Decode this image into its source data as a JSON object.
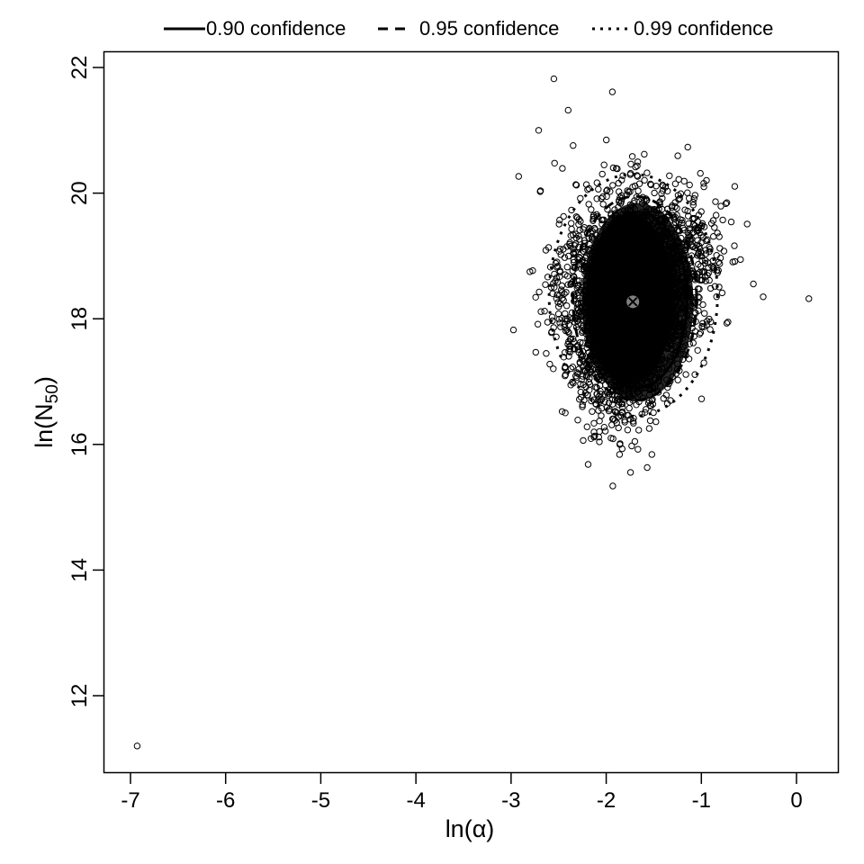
{
  "chart_data": {
    "type": "scatter",
    "title": "",
    "xlabel": "ln(α)",
    "ylabel": "ln(N50)",
    "ylabel_parts": {
      "prefix": "ln(N",
      "subscript": "50",
      "suffix": ")"
    },
    "xlim": [
      -7.28,
      0.45
    ],
    "ylim": [
      10.8,
      22.3
    ],
    "x_ticks": [
      -7,
      -6,
      -5,
      -4,
      -3,
      -2,
      -1,
      0
    ],
    "y_ticks": [
      12,
      14,
      16,
      18,
      20,
      22
    ],
    "grid": false,
    "legend_position": "top (outside plot, horizontal)",
    "legend": [
      {
        "label": "0.90 confidence",
        "linestyle": "solid"
      },
      {
        "label": "0.95 confidence",
        "linestyle": "dashed"
      },
      {
        "label": "0.99 confidence",
        "linestyle": "dotted"
      }
    ],
    "point_estimate": {
      "x": -1.72,
      "y": 18.27,
      "marker": "circled-x",
      "color": "#808080"
    },
    "confidence_regions": [
      {
        "level": 0.9,
        "linestyle": "solid",
        "x_range": [
          -2.2,
          -1.15
        ],
        "y_range": [
          16.9,
          19.7
        ]
      },
      {
        "level": 0.95,
        "linestyle": "dashed",
        "x_range": [
          -2.35,
          -1.05
        ],
        "y_range": [
          16.7,
          19.95
        ]
      },
      {
        "level": 0.99,
        "linestyle": "dotted",
        "x_range": [
          -2.6,
          -0.83
        ],
        "y_range": [
          16.45,
          20.3
        ]
      }
    ],
    "bootstrap_cloud": {
      "description": "dense cloud of open-circle bootstrap points around the point estimate",
      "approx_x_range": [
        -2.7,
        0.13
      ],
      "approx_y_range": [
        15.85,
        21.85
      ]
    },
    "notable_outliers": [
      {
        "x": -6.93,
        "y": 11.2
      },
      {
        "x": -2.55,
        "y": 21.82
      },
      {
        "x": -2.71,
        "y": 21.0
      },
      {
        "x": -2.4,
        "y": 21.32
      },
      {
        "x": 0.13,
        "y": 18.32
      },
      {
        "x": -0.35,
        "y": 18.35
      },
      {
        "x": -1.86,
        "y": 15.84
      },
      {
        "x": -1.52,
        "y": 15.84
      },
      {
        "x": -1.95,
        "y": 16.1
      },
      {
        "x": -1.6,
        "y": 20.62
      }
    ]
  }
}
